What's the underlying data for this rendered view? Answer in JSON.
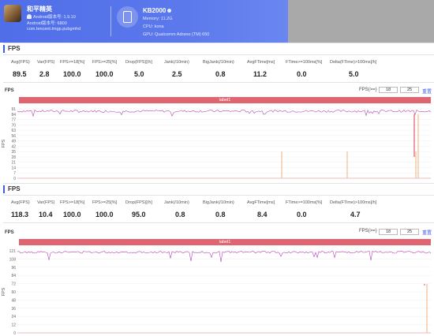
{
  "app": {
    "name": "和平精英",
    "android_version_label": "Android版本号: 1.9.10",
    "android_build_label": "Android版本号: 6800",
    "package": "com.tencent.tmgp.pubgmhd"
  },
  "device": {
    "name": "KB2000",
    "memory": "Memory: 11.2G",
    "cpu": "CPU: kona",
    "gpu": "GPU: Qualcomm Adreno (TM) 650"
  },
  "colors": {
    "accent": "#3c5de0",
    "header_grad": "#5b78ec",
    "banner": "#e06571",
    "fps_line": "#b247b7",
    "jank_line": "#f0b079",
    "jank_marker": "#e0364f"
  },
  "sections": [
    {
      "title": "FPS",
      "stats": [
        {
          "label": "Avg(FPS)",
          "value": "89.5"
        },
        {
          "label": "Var(FPS)",
          "value": "2.8"
        },
        {
          "label": "FPS>=18[%]",
          "value": "100.0"
        },
        {
          "label": "FPS>=25[%]",
          "value": "100.0"
        },
        {
          "label": "Drop(FPS)[/h]",
          "value": "5.0"
        },
        {
          "label": "Jank(/10min)",
          "value": "2.5"
        },
        {
          "label": "BigJank(/10min)",
          "value": "0.8"
        },
        {
          "label": "AvgFTime[ms]",
          "value": "11.2"
        },
        {
          "label": "FTime>=100ms[%]",
          "value": "0.0"
        },
        {
          "label": "Delta(FTime)>100ms[/h]",
          "value": "5.0"
        }
      ],
      "chart": {
        "title": "FPS",
        "y_axis_title": "FPS",
        "filter_label": "FPS(>=)",
        "filter_min": "18",
        "filter_max": "25",
        "reset_label": "重置",
        "banner_label": "label1",
        "y_ticks": [
          "91",
          "84",
          "77",
          "70",
          "63",
          "56",
          "49",
          "42",
          "35",
          "28",
          "21",
          "14",
          "7",
          "0"
        ]
      }
    },
    {
      "title": "FPS",
      "stats": [
        {
          "label": "Avg(FPS)",
          "value": "118.3"
        },
        {
          "label": "Var(FPS)",
          "value": "10.4"
        },
        {
          "label": "FPS>=18[%]",
          "value": "100.0"
        },
        {
          "label": "FPS>=25[%]",
          "value": "100.0"
        },
        {
          "label": "Drop(FPS)[/h]",
          "value": "95.0"
        },
        {
          "label": "Jank(/10min)",
          "value": "0.8"
        },
        {
          "label": "BigJank(/10min)",
          "value": "0.8"
        },
        {
          "label": "AvgFTime[ms]",
          "value": "8.4"
        },
        {
          "label": "FTime>=100ms[%]",
          "value": "0.0"
        },
        {
          "label": "Delta(FTime)>100ms[/h]",
          "value": "4.7"
        }
      ],
      "chart": {
        "title": "FPS",
        "y_axis_title": "FPS",
        "filter_label": "FPS(>=)",
        "filter_min": "18",
        "filter_max": "25",
        "reset_label": "重置",
        "banner_label": "label1",
        "y_ticks": [
          "121",
          "108",
          "96",
          "84",
          "72",
          "60",
          "48",
          "36",
          "24",
          "12",
          "0"
        ]
      }
    }
  ]
}
